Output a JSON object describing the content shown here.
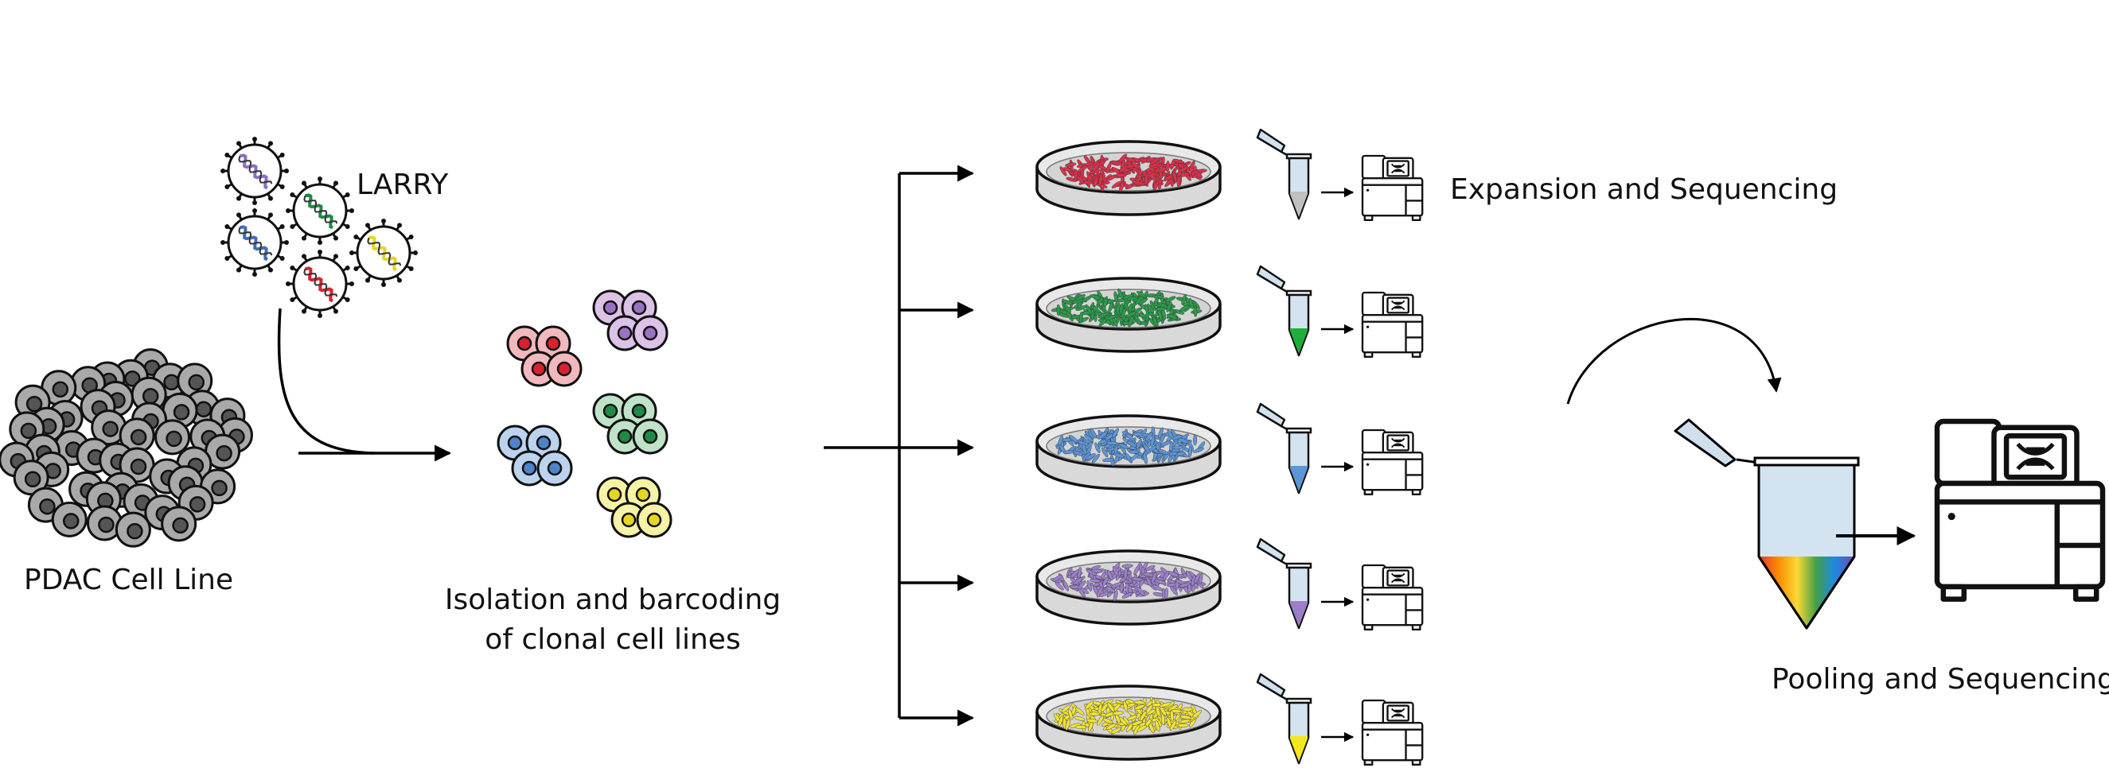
{
  "labels": {
    "cell_line": "PDAC Cell Line",
    "virus": "LARRY",
    "isolation_line1": "Isolation and barcoding",
    "isolation_line2": "of clonal cell lines",
    "expansion": "Expansion and Sequencing",
    "pooling": "Pooling and Sequencing"
  },
  "clone_colors": [
    {
      "name": "red",
      "fill": "#f2b8bd",
      "nucleus": "#d7232f",
      "dish": "#d8324b",
      "tube": "#c0c0c0"
    },
    {
      "name": "purple",
      "fill": "#dcc2e6",
      "nucleus": "#9a72c4",
      "dish": "#9b80c9",
      "tube": "#9b80c9"
    },
    {
      "name": "green",
      "fill": "#bfe3c8",
      "nucleus": "#1f8a44",
      "dish": "#2b9a4a",
      "tube": "#1fae3a"
    },
    {
      "name": "blue",
      "fill": "#bcd3ee",
      "nucleus": "#4c84c9",
      "dish": "#5d95d6",
      "tube": "#5d95d6"
    },
    {
      "name": "yellow",
      "fill": "#f6f3a8",
      "nucleus": "#e4d624",
      "dish": "#efe23a",
      "tube": "#f4e81c"
    }
  ],
  "dish_order": [
    "red",
    "green",
    "blue",
    "purple",
    "yellow"
  ]
}
